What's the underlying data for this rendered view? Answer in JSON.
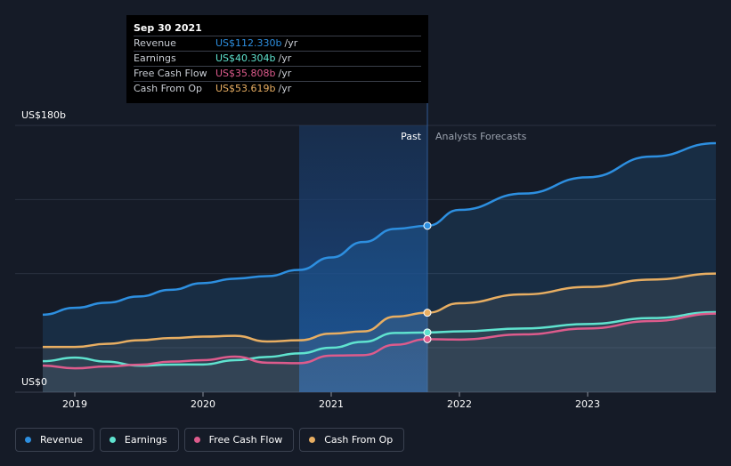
{
  "tooltip": {
    "date": "Sep 30 2021",
    "rows": [
      {
        "name": "Revenue",
        "value": "US$112.330b",
        "unit": "/yr",
        "color": "#2d8fe0"
      },
      {
        "name": "Earnings",
        "value": "US$40.304b",
        "unit": "/yr",
        "color": "#5fe3cf"
      },
      {
        "name": "Free Cash Flow",
        "value": "US$35.808b",
        "unit": "/yr",
        "color": "#dd5b8c"
      },
      {
        "name": "Cash From Op",
        "value": "US$53.619b",
        "unit": "/yr",
        "color": "#e8ae62"
      }
    ]
  },
  "legend": [
    {
      "label": "Revenue",
      "color": "#2d8fe0"
    },
    {
      "label": "Earnings",
      "color": "#5fe3cf"
    },
    {
      "label": "Free Cash Flow",
      "color": "#dd5b8c"
    },
    {
      "label": "Cash From Op",
      "color": "#e8ae62"
    }
  ],
  "chart_data": {
    "type": "line",
    "y_top_label": "US$180b",
    "y_bottom_label": "US$0",
    "ylim": [
      0,
      180
    ],
    "xlim": [
      2018.75,
      2024.0
    ],
    "x_ticks": [
      {
        "value": 2019.0,
        "label": "2019"
      },
      {
        "value": 2020.0,
        "label": "2020"
      },
      {
        "value": 2021.0,
        "label": "2021"
      },
      {
        "value": 2022.0,
        "label": "2022"
      },
      {
        "value": 2023.0,
        "label": "2023"
      }
    ],
    "past_label": "Past",
    "forecast_label": "Analysts Forecasts",
    "divider_x": 2021.75,
    "highlight_start_x": 2020.75,
    "series": [
      {
        "name": "Revenue",
        "color": "#2d8fe0",
        "points": [
          [
            2018.75,
            52.3
          ],
          [
            2019.0,
            56.9
          ],
          [
            2019.25,
            60.4
          ],
          [
            2019.5,
            64.6
          ],
          [
            2019.75,
            69.1
          ],
          [
            2020.0,
            73.6
          ],
          [
            2020.25,
            76.6
          ],
          [
            2020.5,
            78.3
          ],
          [
            2020.75,
            82.5
          ],
          [
            2021.0,
            90.9
          ],
          [
            2021.25,
            101.3
          ],
          [
            2021.5,
            110.2
          ],
          [
            2021.75,
            112.3
          ],
          [
            2022.0,
            123.0
          ],
          [
            2022.5,
            134.0
          ],
          [
            2023.0,
            145.0
          ],
          [
            2023.5,
            159.0
          ],
          [
            2024.0,
            168.0
          ]
        ]
      },
      {
        "name": "Earnings",
        "color": "#5fe3cf",
        "points": [
          [
            2018.75,
            20.9
          ],
          [
            2019.0,
            23.3
          ],
          [
            2019.25,
            20.6
          ],
          [
            2019.5,
            17.9
          ],
          [
            2019.75,
            18.6
          ],
          [
            2020.0,
            18.7
          ],
          [
            2020.25,
            21.6
          ],
          [
            2020.5,
            23.8
          ],
          [
            2020.75,
            26.2
          ],
          [
            2021.0,
            30.0
          ],
          [
            2021.25,
            34.0
          ],
          [
            2021.5,
            40.0
          ],
          [
            2021.75,
            40.3
          ],
          [
            2022.0,
            41.0
          ],
          [
            2022.5,
            43.0
          ],
          [
            2023.0,
            46.0
          ],
          [
            2023.5,
            50.0
          ],
          [
            2024.0,
            54.0
          ]
        ]
      },
      {
        "name": "Free Cash Flow",
        "color": "#dd5b8c",
        "points": [
          [
            2018.75,
            17.9
          ],
          [
            2019.0,
            16.1
          ],
          [
            2019.25,
            17.4
          ],
          [
            2019.5,
            18.5
          ],
          [
            2019.75,
            20.6
          ],
          [
            2020.0,
            21.6
          ],
          [
            2020.25,
            24.0
          ],
          [
            2020.5,
            19.9
          ],
          [
            2020.75,
            19.6
          ],
          [
            2021.0,
            24.7
          ],
          [
            2021.25,
            25.0
          ],
          [
            2021.5,
            32.0
          ],
          [
            2021.75,
            35.8
          ],
          [
            2022.0,
            35.5
          ],
          [
            2022.5,
            39.0
          ],
          [
            2023.0,
            43.0
          ],
          [
            2023.5,
            48.0
          ],
          [
            2024.0,
            53.0
          ]
        ]
      },
      {
        "name": "Cash From Op",
        "color": "#e8ae62",
        "points": [
          [
            2018.75,
            30.5
          ],
          [
            2019.0,
            30.5
          ],
          [
            2019.25,
            32.6
          ],
          [
            2019.5,
            35.0
          ],
          [
            2019.75,
            36.5
          ],
          [
            2020.0,
            37.5
          ],
          [
            2020.25,
            38.0
          ],
          [
            2020.5,
            34.2
          ],
          [
            2020.75,
            35.0
          ],
          [
            2021.0,
            39.5
          ],
          [
            2021.25,
            41.0
          ],
          [
            2021.5,
            51.0
          ],
          [
            2021.75,
            53.6
          ],
          [
            2022.0,
            60.0
          ],
          [
            2022.5,
            66.0
          ],
          [
            2023.0,
            71.0
          ],
          [
            2023.5,
            76.0
          ],
          [
            2024.0,
            80.0
          ]
        ]
      }
    ]
  }
}
